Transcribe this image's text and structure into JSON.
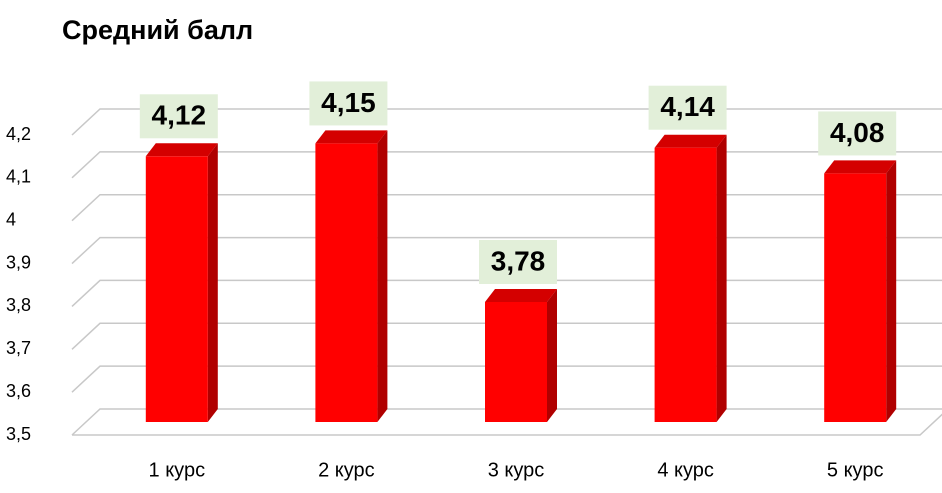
{
  "chart_data": {
    "type": "bar",
    "title": "Средний балл",
    "categories": [
      "1 курс",
      "2 курс",
      "3 курс",
      "4 курс",
      "5 курс"
    ],
    "values": [
      4.12,
      4.15,
      3.78,
      4.14,
      4.08
    ],
    "value_labels": [
      "4,12",
      "4,15",
      "3,78",
      "4,14",
      "4,08"
    ],
    "color": "#ff0000",
    "ylim": [
      3.5,
      4.2
    ],
    "yticks": [
      {
        "value": 3.5,
        "label": "3,5"
      },
      {
        "value": 3.6,
        "label": "3,6"
      },
      {
        "value": 3.7,
        "label": "3,7"
      },
      {
        "value": 3.8,
        "label": "3,8"
      },
      {
        "value": 3.9,
        "label": "3,9"
      },
      4,
      {
        "value": 4.1,
        "label": "4,1"
      },
      {
        "value": 4.2,
        "label": "4,2"
      }
    ],
    "grid": true
  }
}
